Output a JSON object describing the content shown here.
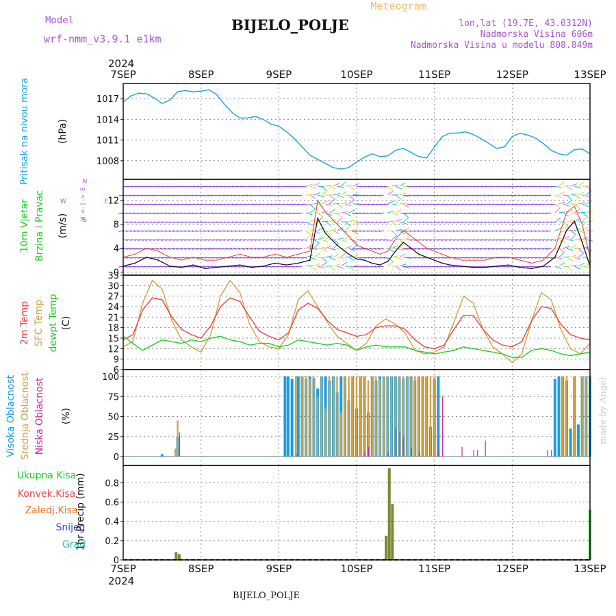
{
  "header": {
    "title": "Meteogram",
    "station": "BIJELO_POLJE",
    "model_label": "Model",
    "model_name": "wrf-nmm_v3.9.1  e1km",
    "lonlat": "lon,lat (19.7E, 43.0312N)",
    "elevation": "Nadmorska Visina 606m",
    "model_elevation": "Nadmorska Visina u modelu 808.849m",
    "year": "2024",
    "footer_station": "BIJELO_POLJE",
    "watermark": "made by Angel"
  },
  "colors": {
    "pressure": "#22aadd",
    "dewpoint": "#22cc22",
    "temp2m": "#ee4444",
    "tempsfc": "#d4a040",
    "high_cloud": "#1a9ee0",
    "mid_cloud": "#d4a040",
    "low_cloud": "#cc2299",
    "total_precip": "#22cc22",
    "conv_precip": "#ee4444",
    "frozen_precip": "#ee7722",
    "snow": "#4444dd",
    "hail": "#22bbaa",
    "model_label": "#aa55cc",
    "wind_speed": "#111111",
    "gust": "#ee3333"
  },
  "chart_data": [
    {
      "id": "pressure",
      "type": "line",
      "ylabel": "Pritisak na nivou mora",
      "unit": "(hPa)",
      "yticks": [
        1008,
        1011,
        1014,
        1017
      ],
      "ylim": [
        1005.3,
        1019.2
      ],
      "x_day_ticks": [
        "7SEP",
        "8SEP",
        "9SEP",
        "10SEP",
        "11SEP",
        "12SEP",
        "13SEP"
      ],
      "x": [
        0,
        0.1,
        0.2,
        0.3,
        0.4,
        0.5,
        0.6,
        0.7,
        0.8,
        0.9,
        1.0,
        1.1,
        1.2,
        1.3,
        1.4,
        1.5,
        1.6,
        1.7,
        1.8,
        1.9,
        2.0,
        2.1,
        2.2,
        2.3,
        2.4,
        2.5,
        2.6,
        2.7,
        2.8,
        2.9,
        3.0,
        3.1,
        3.2,
        3.3,
        3.4,
        3.5,
        3.6,
        3.7,
        3.8,
        3.9,
        4.0,
        4.1,
        4.2,
        4.3,
        4.4,
        4.5,
        4.6,
        4.7,
        4.8,
        4.9,
        5.0,
        5.1,
        5.2,
        5.3,
        5.4,
        5.5,
        5.6,
        5.7,
        5.8,
        5.9,
        6.0
      ],
      "values": [
        1016.5,
        1017.4,
        1017.8,
        1017.7,
        1017.1,
        1016.3,
        1016.8,
        1018.0,
        1018.2,
        1018.0,
        1018.1,
        1018.3,
        1017.6,
        1016.2,
        1015.0,
        1014.2,
        1014.2,
        1014.4,
        1014.0,
        1013.3,
        1013.0,
        1012.2,
        1011.2,
        1010.0,
        1008.8,
        1008.2,
        1007.6,
        1007.0,
        1006.8,
        1007.0,
        1007.8,
        1008.5,
        1009.0,
        1008.6,
        1008.7,
        1009.5,
        1009.8,
        1009.2,
        1008.6,
        1008.4,
        1010.0,
        1011.5,
        1012.0,
        1012.0,
        1012.2,
        1011.8,
        1011.2,
        1010.5,
        1009.8,
        1010.0,
        1011.5,
        1012.0,
        1011.7,
        1011.3,
        1010.5,
        1009.5,
        1009.0,
        1008.8,
        1009.6,
        1009.7,
        1009.0
      ]
    },
    {
      "id": "wind",
      "type": "line",
      "ylabel": "10m Vjetar Brzina i Pravac",
      "unit": "(m/s)",
      "compass": "N",
      "compass_s": "S",
      "compass_w": "W",
      "compass_e": "E",
      "compass_row": "W <-|-> E",
      "yticks": [
        0,
        4,
        8,
        12
      ],
      "ylim": [
        -0.5,
        15.5
      ],
      "x": [
        0,
        0.15,
        0.3,
        0.45,
        0.6,
        0.75,
        0.9,
        1.05,
        1.2,
        1.35,
        1.5,
        1.65,
        1.8,
        1.95,
        2.1,
        2.25,
        2.4,
        2.5,
        2.6,
        2.75,
        2.9,
        3.0,
        3.1,
        3.2,
        3.3,
        3.4,
        3.5,
        3.6,
        3.7,
        3.8,
        3.9,
        4.0,
        4.1,
        4.2,
        4.35,
        4.5,
        4.65,
        4.8,
        4.95,
        5.1,
        5.25,
        5.4,
        5.55,
        5.7,
        5.8,
        5.9,
        6.0
      ],
      "speed": [
        1.0,
        1.5,
        2.5,
        2.0,
        1.0,
        0.8,
        1.2,
        0.6,
        0.8,
        1.0,
        1.2,
        0.8,
        1.0,
        1.5,
        1.2,
        1.5,
        2.0,
        9.0,
        6.5,
        4.5,
        3.0,
        2.2,
        2.0,
        1.5,
        1.2,
        1.8,
        3.5,
        5.0,
        4.0,
        3.0,
        2.5,
        2.0,
        1.5,
        1.2,
        1.0,
        0.8,
        0.8,
        1.0,
        1.2,
        0.8,
        0.6,
        1.0,
        2.5,
        7.0,
        8.5,
        5.0,
        1.0
      ],
      "gust": [
        2.5,
        3.0,
        4.0,
        3.5,
        2.5,
        2.0,
        2.5,
        2.0,
        2.0,
        2.5,
        3.0,
        2.5,
        2.5,
        3.0,
        2.5,
        3.0,
        3.5,
        12.0,
        10.0,
        8.0,
        6.0,
        4.5,
        4.0,
        3.5,
        3.0,
        3.5,
        5.5,
        7.0,
        6.0,
        5.0,
        4.0,
        3.5,
        3.0,
        2.5,
        2.0,
        2.0,
        2.0,
        2.5,
        2.5,
        2.0,
        1.5,
        2.0,
        4.0,
        10.0,
        11.0,
        8.0,
        2.5
      ]
    },
    {
      "id": "temperature",
      "type": "line",
      "ylabel_2m": "2m Temp",
      "ylabel_sfc": "SFC Temp",
      "ylabel_dew": "dewpt Temp",
      "unit": "(C)",
      "yticks": [
        6,
        9,
        12,
        15,
        18,
        21,
        24,
        27,
        30,
        33
      ],
      "ylim": [
        6,
        33
      ],
      "x": [
        0,
        0.125,
        0.25,
        0.375,
        0.5,
        0.625,
        0.75,
        0.875,
        1.0,
        1.125,
        1.25,
        1.375,
        1.5,
        1.625,
        1.75,
        1.875,
        2.0,
        2.125,
        2.25,
        2.375,
        2.5,
        2.625,
        2.75,
        2.875,
        3.0,
        3.125,
        3.25,
        3.375,
        3.5,
        3.625,
        3.75,
        3.875,
        4.0,
        4.125,
        4.25,
        4.375,
        4.5,
        4.625,
        4.75,
        4.875,
        5.0,
        5.125,
        5.25,
        5.375,
        5.5,
        5.625,
        5.75,
        5.875,
        6.0
      ],
      "t2m": [
        14.5,
        16.0,
        23.0,
        26.5,
        26.0,
        21.0,
        17.5,
        16.0,
        15.0,
        18.5,
        24.0,
        26.5,
        25.5,
        21.0,
        17.0,
        15.5,
        14.5,
        16.5,
        23.0,
        25.0,
        23.5,
        20.0,
        17.5,
        16.5,
        15.5,
        16.0,
        18.0,
        18.5,
        18.5,
        17.5,
        14.5,
        12.5,
        12.0,
        13.0,
        17.5,
        21.5,
        21.5,
        17.5,
        14.5,
        13.0,
        12.5,
        14.0,
        20.0,
        24.0,
        23.5,
        19.0,
        16.0,
        15.0,
        14.5
      ],
      "tsfc": [
        12.5,
        14.0,
        25.0,
        31.5,
        29.0,
        20.0,
        14.5,
        12.5,
        11.0,
        16.0,
        27.0,
        31.5,
        28.0,
        19.0,
        14.0,
        12.5,
        12.0,
        16.0,
        26.0,
        28.5,
        24.0,
        19.5,
        15.5,
        13.5,
        11.5,
        13.5,
        18.5,
        20.5,
        19.0,
        16.5,
        11.5,
        10.5,
        11.0,
        12.5,
        19.5,
        27.0,
        25.0,
        17.5,
        12.5,
        10.5,
        8.0,
        10.5,
        20.0,
        28.0,
        26.0,
        17.5,
        12.0,
        10.5,
        13.5
      ],
      "dew": [
        15.5,
        13.5,
        11.5,
        13.0,
        14.5,
        14.0,
        13.5,
        14.5,
        14.0,
        15.0,
        15.5,
        14.5,
        14.0,
        13.0,
        13.5,
        13.5,
        12.5,
        13.0,
        14.5,
        14.0,
        13.5,
        13.0,
        13.5,
        13.0,
        11.5,
        12.5,
        13.0,
        12.5,
        12.5,
        12.5,
        11.5,
        11.0,
        10.5,
        11.0,
        11.5,
        12.5,
        12.0,
        11.5,
        11.0,
        10.5,
        9.5,
        9.5,
        11.5,
        12.0,
        11.5,
        10.5,
        10.0,
        10.5,
        11.0
      ]
    },
    {
      "id": "cloud",
      "type": "bar",
      "ylabel_high": "Visoka Oblacnost",
      "ylabel_mid": "Srednja Oblacnost",
      "ylabel_low": "Niska Oblacnost",
      "unit": "(%)",
      "yticks": [
        0,
        25,
        50,
        75,
        100
      ],
      "ylim": [
        0,
        100
      ],
      "high": [
        [
          0.5,
          3
        ],
        [
          0.7,
          25
        ],
        [
          2.08,
          100
        ],
        [
          2.12,
          100
        ],
        [
          2.17,
          97
        ],
        [
          2.25,
          100
        ],
        [
          2.3,
          100
        ],
        [
          2.35,
          97
        ],
        [
          2.4,
          100
        ],
        [
          2.45,
          98
        ],
        [
          2.5,
          85
        ],
        [
          2.55,
          100
        ],
        [
          2.6,
          100
        ],
        [
          2.65,
          95
        ],
        [
          2.7,
          100
        ],
        [
          2.75,
          80
        ],
        [
          2.8,
          100
        ],
        [
          2.85,
          100
        ],
        [
          2.9,
          70
        ],
        [
          2.95,
          100
        ],
        [
          3.0,
          60
        ],
        [
          3.05,
          100
        ],
        [
          3.1,
          100
        ],
        [
          3.15,
          55
        ],
        [
          3.2,
          100
        ],
        [
          3.25,
          95
        ],
        [
          3.3,
          100
        ],
        [
          3.35,
          100
        ],
        [
          3.4,
          100
        ],
        [
          3.45,
          100
        ],
        [
          3.5,
          100
        ],
        [
          3.55,
          100
        ],
        [
          3.6,
          97
        ],
        [
          3.65,
          100
        ],
        [
          3.7,
          100
        ],
        [
          3.75,
          95
        ],
        [
          3.8,
          100
        ],
        [
          3.85,
          100
        ],
        [
          3.9,
          100
        ],
        [
          3.95,
          37
        ],
        [
          4.0,
          97
        ],
        [
          4.05,
          100
        ],
        [
          5.55,
          97
        ],
        [
          5.6,
          100
        ],
        [
          5.65,
          100
        ],
        [
          5.7,
          95
        ],
        [
          5.75,
          35
        ],
        [
          5.8,
          100
        ],
        [
          5.85,
          40
        ],
        [
          5.9,
          100
        ],
        [
          5.95,
          100
        ],
        [
          6.0,
          100
        ]
      ],
      "mid": [
        [
          0.65,
          10
        ],
        [
          0.68,
          45
        ],
        [
          2.2,
          100
        ],
        [
          2.28,
          100
        ],
        [
          2.33,
          100
        ],
        [
          2.38,
          97
        ],
        [
          2.43,
          100
        ],
        [
          2.48,
          75
        ],
        [
          2.53,
          100
        ],
        [
          2.58,
          60
        ],
        [
          2.63,
          100
        ],
        [
          2.68,
          100
        ],
        [
          2.73,
          100
        ],
        [
          2.78,
          55
        ],
        [
          2.83,
          100
        ],
        [
          2.88,
          100
        ],
        [
          2.93,
          100
        ],
        [
          2.98,
          100
        ],
        [
          3.03,
          100
        ],
        [
          3.08,
          100
        ],
        [
          3.13,
          95
        ],
        [
          3.18,
          100
        ],
        [
          3.23,
          100
        ],
        [
          3.28,
          97
        ],
        [
          3.33,
          100
        ],
        [
          3.38,
          100
        ],
        [
          3.43,
          100
        ],
        [
          3.48,
          100
        ],
        [
          3.53,
          100
        ],
        [
          3.58,
          100
        ],
        [
          3.63,
          100
        ],
        [
          3.68,
          100
        ],
        [
          3.73,
          100
        ],
        [
          3.78,
          100
        ],
        [
          3.83,
          100
        ],
        [
          3.88,
          100
        ],
        [
          3.93,
          100
        ],
        [
          3.98,
          100
        ],
        [
          5.63,
          100
        ],
        [
          5.68,
          100
        ],
        [
          5.78,
          100
        ],
        [
          5.88,
          100
        ],
        [
          5.93,
          100
        ]
      ],
      "low": [
        [
          0.72,
          30
        ],
        [
          2.22,
          3
        ],
        [
          3.1,
          5
        ],
        [
          3.15,
          12
        ],
        [
          3.4,
          5
        ],
        [
          3.5,
          35
        ],
        [
          3.55,
          30
        ],
        [
          3.6,
          25
        ],
        [
          3.7,
          10
        ],
        [
          3.8,
          5
        ],
        [
          4.05,
          5
        ],
        [
          4.1,
          75
        ],
        [
          4.35,
          12
        ],
        [
          4.5,
          8
        ],
        [
          4.55,
          8
        ],
        [
          4.65,
          20
        ],
        [
          5.45,
          8
        ],
        [
          5.5,
          8
        ]
      ]
    },
    {
      "id": "precip",
      "type": "bar",
      "ylabel": "1hr Precip (mm)",
      "legend": [
        "Ukupna Kisa",
        "Konvek.Kisa",
        "Zaledj.Kisa",
        "Snijeg",
        "Grad"
      ],
      "yticks": [
        0,
        0.2,
        0.4,
        0.6,
        0.8
      ],
      "ylim": [
        0,
        0.98
      ],
      "total": [
        [
          0.68,
          0.08
        ],
        [
          0.72,
          0.06
        ],
        [
          3.38,
          0.25
        ],
        [
          3.42,
          0.95
        ],
        [
          3.46,
          0.58
        ],
        [
          6.0,
          0.52
        ]
      ]
    }
  ]
}
